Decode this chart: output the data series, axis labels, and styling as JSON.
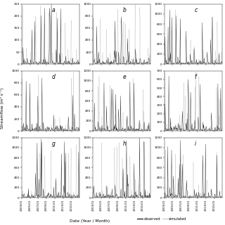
{
  "panels": [
    {
      "label": "a",
      "ylim": [
        0,
        250
      ],
      "yticks": [
        0,
        50,
        100,
        150,
        200,
        250
      ]
    },
    {
      "label": "b",
      "ylim": [
        0,
        1000
      ],
      "yticks": [
        0,
        200,
        400,
        600,
        800,
        1000
      ]
    },
    {
      "label": "c",
      "ylim": [
        0,
        1200
      ],
      "yticks": [
        0,
        200,
        400,
        600,
        800,
        1000,
        1200
      ]
    },
    {
      "label": "d",
      "ylim": [
        0,
        1000
      ],
      "yticks": [
        0,
        200,
        400,
        600,
        800,
        1000
      ]
    },
    {
      "label": "e",
      "ylim": [
        0,
        1200
      ],
      "yticks": [
        0,
        200,
        400,
        600,
        800,
        1000,
        1200
      ]
    },
    {
      "label": "f",
      "ylim": [
        0,
        700
      ],
      "yticks": [
        0,
        100,
        200,
        300,
        400,
        500,
        600,
        700
      ]
    },
    {
      "label": "g",
      "ylim": [
        0,
        1200
      ],
      "yticks": [
        0,
        200,
        400,
        600,
        800,
        1000,
        1200
      ]
    },
    {
      "label": "h",
      "ylim": [
        0,
        1200
      ],
      "yticks": [
        0,
        200,
        400,
        600,
        800,
        1000,
        1200
      ]
    },
    {
      "label": "i",
      "ylim": [
        0,
        1200
      ],
      "yticks": [
        0,
        200,
        400,
        600,
        800,
        1000,
        1200
      ]
    }
  ],
  "n_points": 168,
  "observed_color": "#000000",
  "simulated_color": "#888888",
  "background_color": "#ffffff",
  "ylabel": "Streamflow (m³ s⁻¹)",
  "xlabel": "Date (Year / Month)",
  "legend_observed": "observed",
  "legend_simulated": "simulated",
  "tick_fontsize": 3.2,
  "label_fontsize": 4.2,
  "panel_label_fontsize": 5.5,
  "n_years": 14,
  "start_year": 2003
}
